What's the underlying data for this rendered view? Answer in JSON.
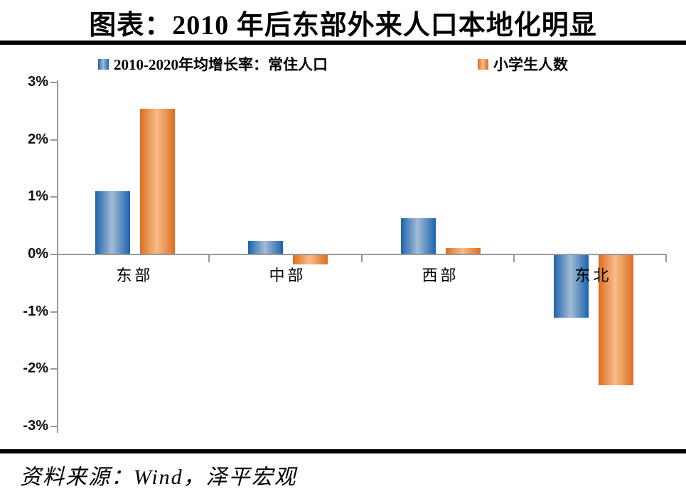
{
  "title": "图表：2010 年后东部外来人口本地化明显",
  "source": "资料来源：Wind，泽平宏观",
  "colors": {
    "divider": "#000000",
    "axis": "#999999",
    "blue_edge": "#1C63B0",
    "blue_mid": "#A3BCD4",
    "orange_edge": "#DD6E1D",
    "orange_mid": "#F8BC8B"
  },
  "chart_data": {
    "type": "bar",
    "title": "图表：2010 年后东部外来人口本地化明显",
    "categories": [
      "东部",
      "中部",
      "西部",
      "东北"
    ],
    "series": [
      {
        "name": "2010-2020年均增长率：常住人口",
        "color_edge": "#1C63B0",
        "color_mid": "#A3BCD4",
        "values": [
          1.09,
          0.22,
          0.62,
          -1.09
        ]
      },
      {
        "name": "小学生人数",
        "color_edge": "#DD6E1D",
        "color_mid": "#F8BC8B",
        "values": [
          2.53,
          -0.16,
          0.1,
          -2.27
        ]
      }
    ],
    "xlabel": "",
    "ylabel": "",
    "ylim": [
      -3,
      3
    ],
    "yticks": [
      "3%",
      "2%",
      "1%",
      "0%",
      "-1%",
      "-2%",
      "-3%"
    ],
    "ytick_values": [
      3,
      2,
      1,
      0,
      -1,
      -2,
      -3
    ],
    "grid": false,
    "legend_position": "top"
  }
}
